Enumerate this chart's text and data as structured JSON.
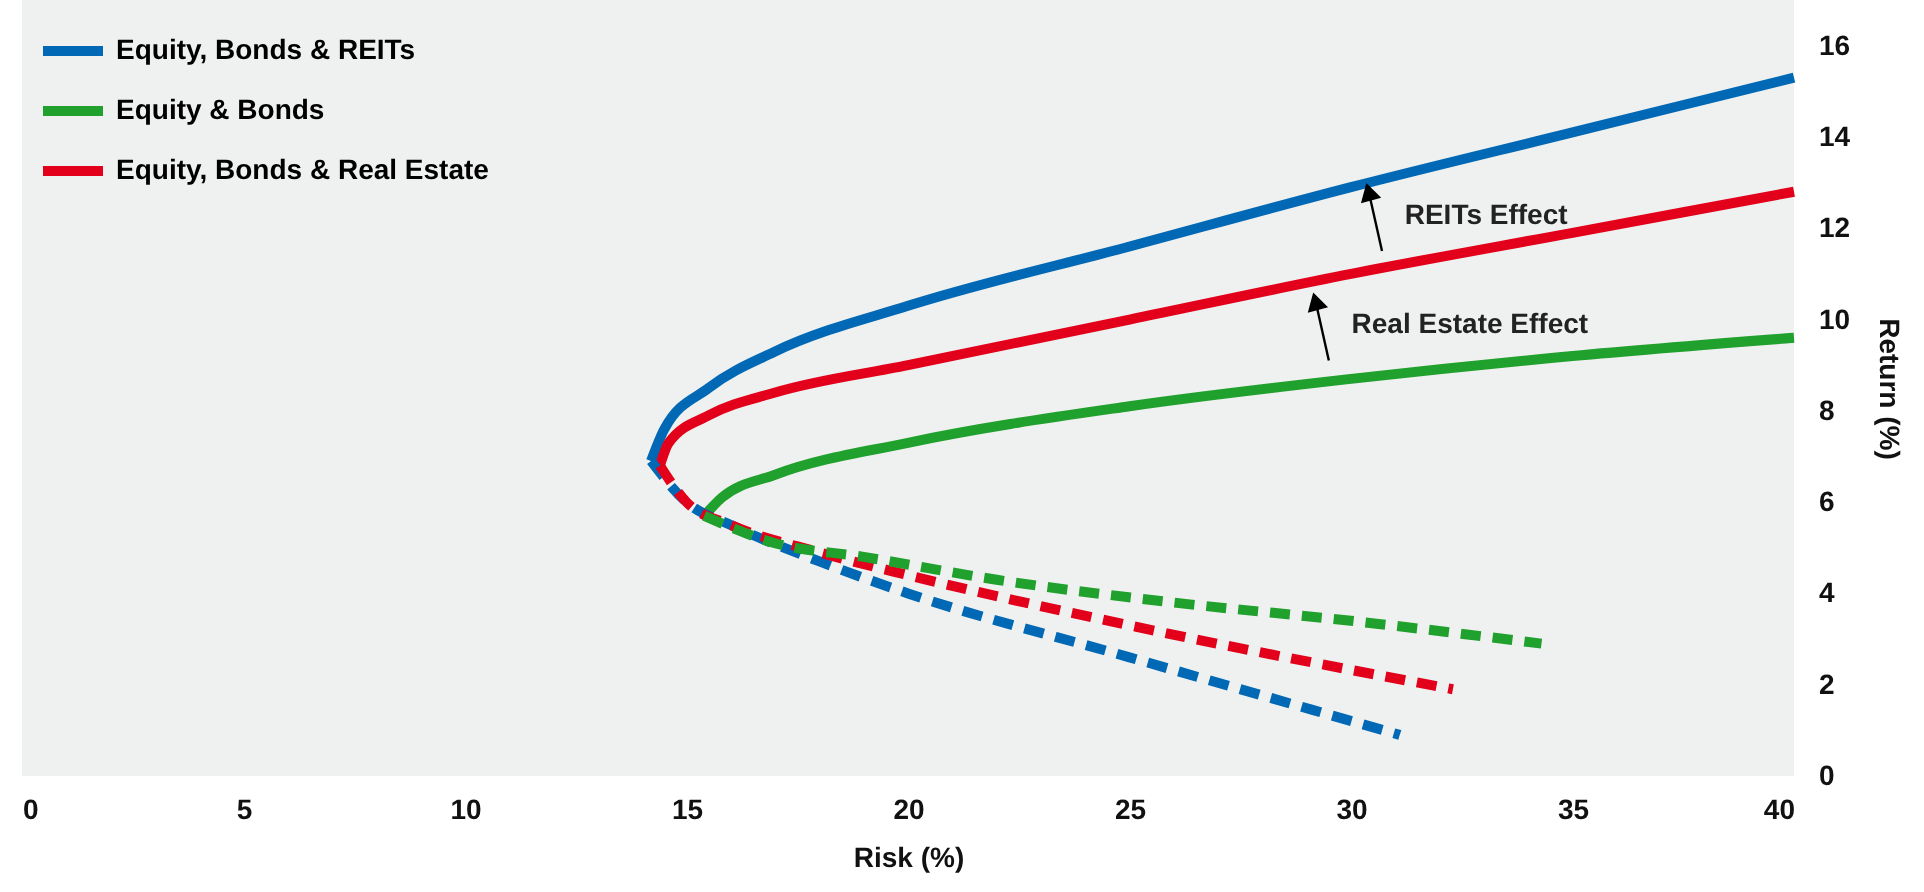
{
  "chart_data": {
    "type": "line",
    "xlabel": "Risk (%)",
    "ylabel": "Return (%)",
    "xlim": [
      0,
      40
    ],
    "xticks": [
      0,
      5,
      10,
      15,
      20,
      25,
      30,
      35,
      40
    ],
    "ylim": [
      0,
      17
    ],
    "yticks": [
      0,
      2,
      4,
      6,
      8,
      10,
      12,
      14,
      16
    ],
    "grid": false,
    "legend": "top left",
    "marker": "none",
    "series": [
      {
        "name": "Equity, Bonds & REITs",
        "color": "#0068b4",
        "line_style": "solid",
        "x": [
          14.2,
          14.5,
          15.5,
          17,
          20,
          25,
          30,
          35,
          40
        ],
        "values": [
          6.9,
          7.6,
          8.5,
          9.3,
          10.3,
          11.6,
          12.9,
          14.1,
          15.3
        ]
      },
      {
        "name": "Equity & Bonds",
        "color": "#20a02c",
        "line_style": "solid",
        "x": [
          15.4,
          15.8,
          17,
          20,
          25,
          30,
          35,
          40
        ],
        "values": [
          5.7,
          6.1,
          6.6,
          7.3,
          8.1,
          8.7,
          9.2,
          9.6
        ]
      },
      {
        "name": "Equity, Bonds & Real Estate",
        "color": "#e2001a",
        "line_style": "solid",
        "x": [
          14.4,
          14.6,
          15.5,
          17,
          20,
          25,
          30,
          35,
          40
        ],
        "values": [
          6.8,
          7.3,
          7.9,
          8.4,
          9.0,
          10.0,
          11.0,
          11.9,
          12.8
        ]
      },
      {
        "color": "#0068b4",
        "line_style": "dashed",
        "x": [
          14.2,
          15,
          16,
          18,
          20,
          25,
          31.1
        ],
        "values": [
          6.9,
          6.0,
          5.5,
          4.7,
          4.0,
          2.6,
          0.9
        ]
      },
      {
        "color": "#e2001a",
        "line_style": "dashed",
        "x": [
          14.4,
          15,
          16,
          18,
          20,
          25,
          32.3
        ],
        "values": [
          6.8,
          6.0,
          5.5,
          4.9,
          4.4,
          3.3,
          1.9
        ]
      },
      {
        "color": "#20a02c",
        "line_style": "dashed",
        "x": [
          15.4,
          17,
          19,
          22,
          26,
          30,
          34.3
        ],
        "values": [
          5.7,
          5.1,
          4.8,
          4.3,
          3.8,
          3.4,
          2.9
        ]
      }
    ],
    "annotations": [
      {
        "text": "REITs Effect",
        "x": 30.4,
        "y": 12.8
      },
      {
        "text": "Real Estate Effect",
        "x": 29.2,
        "y": 10.4
      }
    ]
  }
}
